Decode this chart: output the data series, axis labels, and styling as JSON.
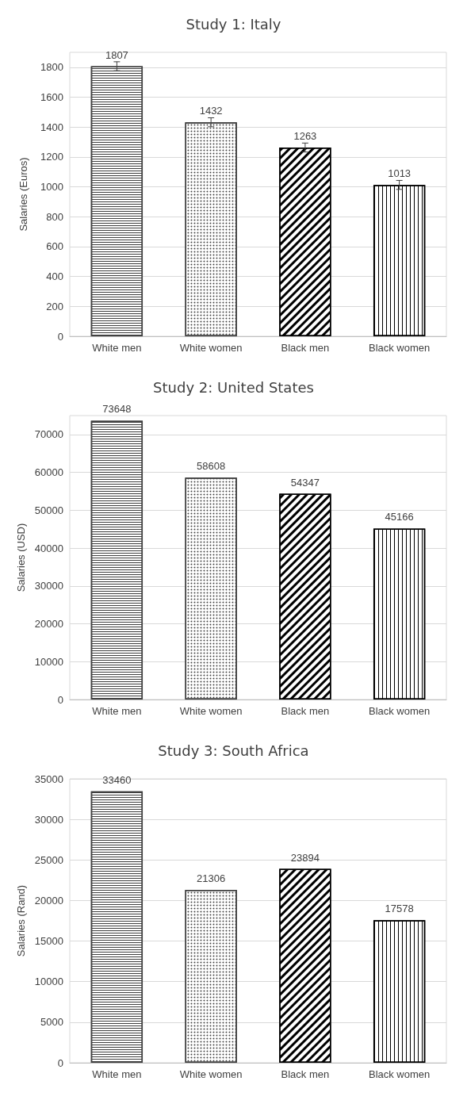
{
  "chart_data": [
    {
      "type": "bar",
      "title": "Study 1: Italy",
      "ylabel": "Salaries (Euros)",
      "categories": [
        "White men",
        "White women",
        "Black men",
        "Black women"
      ],
      "values": [
        1807,
        1432,
        1263,
        1013
      ],
      "errors": [
        30,
        30,
        30,
        30
      ],
      "colors": [
        "#404040",
        "#404040",
        "#000000",
        "#000000"
      ],
      "ylim": [
        0,
        1900
      ],
      "yticks": [
        0,
        200,
        400,
        600,
        800,
        1000,
        1200,
        1400,
        1600,
        1800
      ],
      "grid": "y",
      "data_labels": true
    },
    {
      "type": "bar",
      "title": "Study 2: United States",
      "ylabel": "Salaries (USD)",
      "categories": [
        "White men",
        "White women",
        "Black men",
        "Black women"
      ],
      "values": [
        73648,
        58608,
        54347,
        45166
      ],
      "colors": [
        "#404040",
        "#404040",
        "#000000",
        "#000000"
      ],
      "ylim": [
        0,
        75000
      ],
      "yticks": [
        0,
        10000,
        20000,
        30000,
        40000,
        50000,
        60000,
        70000
      ],
      "grid": "y",
      "data_labels": true
    },
    {
      "type": "bar",
      "title": "Study 3: South Africa",
      "ylabel": "Salaries (Rand)",
      "categories": [
        "White men",
        "White women",
        "Black men",
        "Black women"
      ],
      "values": [
        33460,
        21306,
        23894,
        17578
      ],
      "colors": [
        "#404040",
        "#404040",
        "#000000",
        "#000000"
      ],
      "ylim": [
        0,
        35000
      ],
      "yticks": [
        0,
        5000,
        10000,
        15000,
        20000,
        25000,
        30000,
        35000
      ],
      "grid": "y",
      "data_labels": true
    }
  ]
}
